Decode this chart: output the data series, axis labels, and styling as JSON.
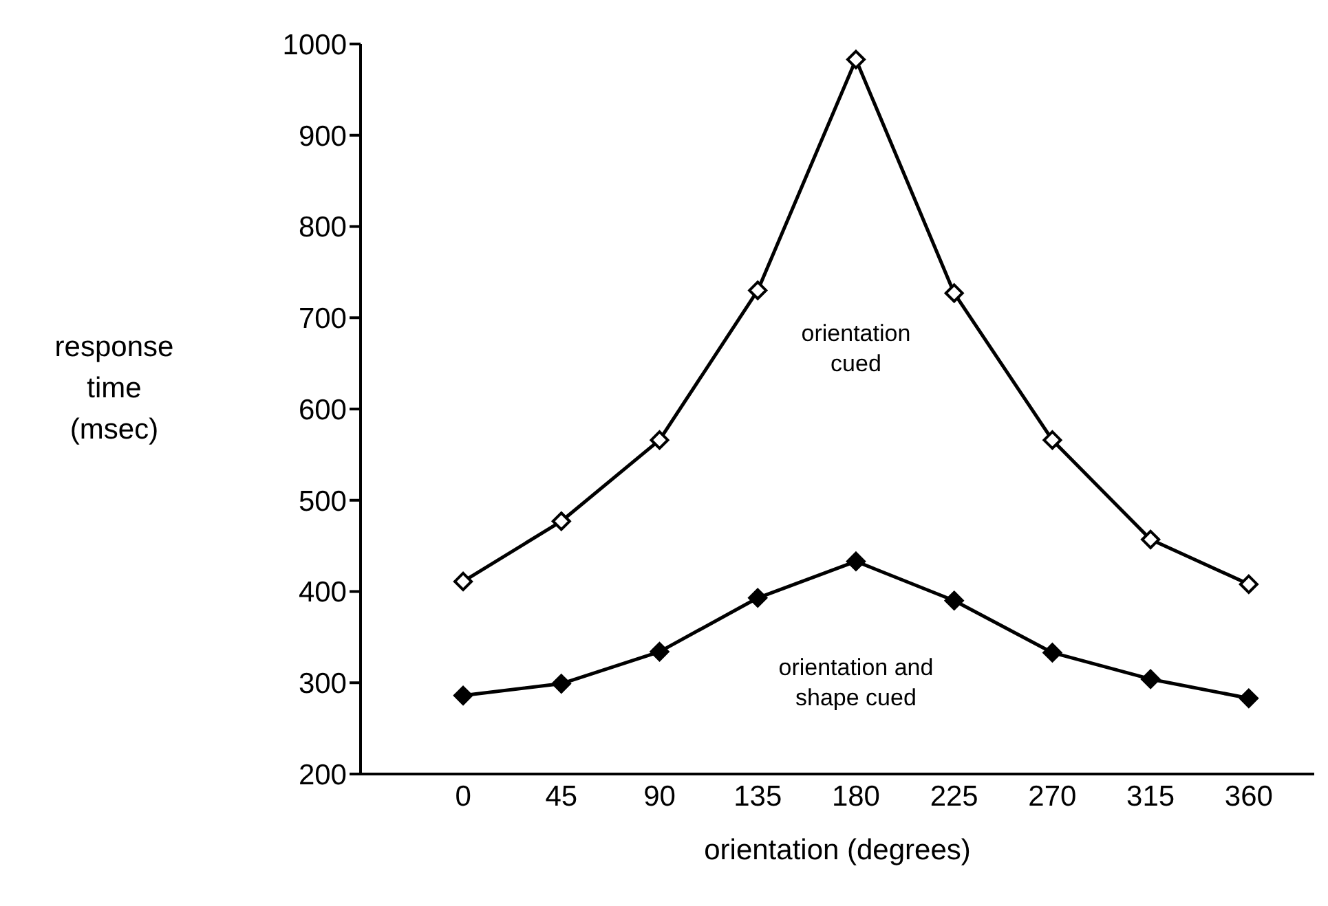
{
  "chart_data": {
    "type": "line",
    "xlabel": "orientation (degrees)",
    "ylabel": "response\ntime\n(msec)",
    "x": [
      0,
      45,
      90,
      135,
      180,
      225,
      270,
      315,
      360
    ],
    "series": [
      {
        "name": "orientation\ncued",
        "color": "#000000",
        "marker": "diamond",
        "values": [
          411,
          477,
          566,
          730,
          983,
          727,
          566,
          457,
          408
        ]
      },
      {
        "name": "orientation and\nshape cued",
        "color": "#000000",
        "marker": "diamond",
        "values": [
          286,
          299,
          334,
          393,
          433,
          390,
          333,
          304,
          283
        ]
      }
    ],
    "xlim": [
      -47,
      390
    ],
    "xticks": [
      0,
      45,
      90,
      135,
      180,
      225,
      270,
      315,
      360
    ],
    "ylim": [
      200,
      1000
    ],
    "yticks": [
      200,
      300,
      400,
      500,
      600,
      700,
      800,
      900,
      1000
    ],
    "grid": false,
    "legend": false,
    "line_style": "solid"
  }
}
